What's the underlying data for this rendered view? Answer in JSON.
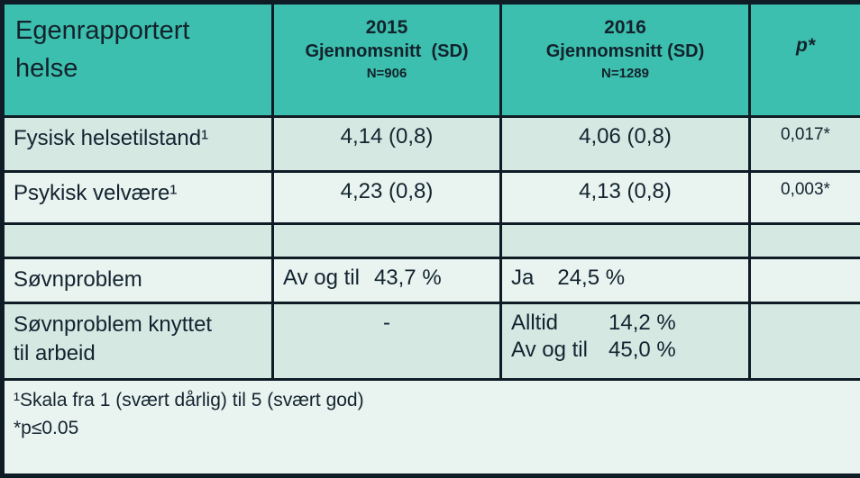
{
  "colors": {
    "header_teal": "#3cbfae",
    "row_mint": "#d6e8e2",
    "row_light": "#e9f3ef",
    "border_dark": "#0f1c26",
    "text_dark": "#132430"
  },
  "header": {
    "title": "Egenrapportert helse",
    "col2015": {
      "year": "2015",
      "label": "Gjennomsnitt  (SD)",
      "n": "N=906"
    },
    "col2016": {
      "year": "2016",
      "label": "Gjennomsnitt (SD)",
      "n": "N=1289"
    },
    "p_label": "p*"
  },
  "rows": {
    "fysisk": {
      "label": "Fysisk helsetilstand¹",
      "v2015": "4,14 (0,8)",
      "v2016": "4,06 (0,8)",
      "p": "0,017*"
    },
    "psykisk": {
      "label": "Psykisk velvære¹",
      "v2015": "4,23 (0,8)",
      "v2016": "4,13 (0,8)",
      "p": "0,003*"
    },
    "sovnproblem": {
      "label": "Søvnproblem",
      "v2015_label": "Av og til",
      "v2015_value": "43,7 %",
      "v2016_label": "Ja",
      "v2016_value": "24,5 %"
    },
    "sovnproblem_arbeid": {
      "label": "Søvnproblem knyttet til arbeid",
      "v2015": "-",
      "lines2016": [
        {
          "label": "Alltid",
          "value": "14,2 %"
        },
        {
          "label": "Av og til",
          "value": "45,0 %"
        }
      ]
    }
  },
  "footnotes": {
    "line1": "¹Skala fra 1 (svært dårlig) til 5 (svært god)",
    "line2": "*p≤0.05"
  }
}
